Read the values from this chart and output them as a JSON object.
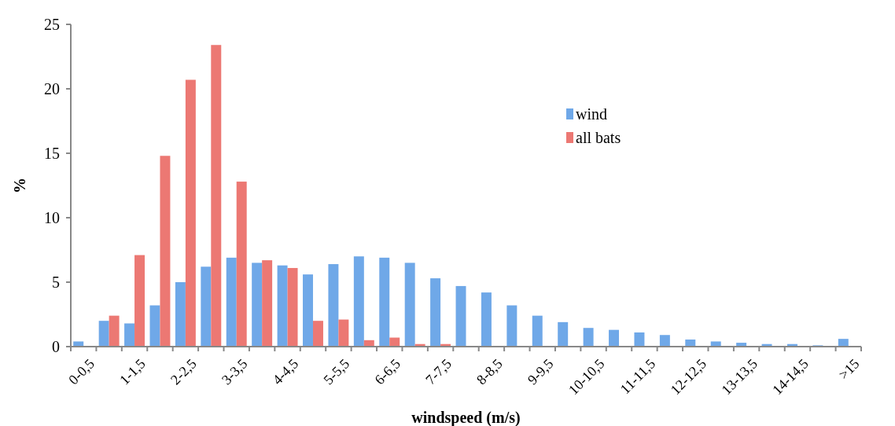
{
  "chart_data": {
    "type": "bar",
    "xlabel": "windspeed (m/s)",
    "ylabel": "%",
    "categories": [
      "0-0,5",
      null,
      "1-1,5",
      null,
      "2-2,5",
      null,
      "3-3,5",
      null,
      "4-4,5",
      null,
      "5-5,5",
      null,
      "6-6,5",
      null,
      "7-7,5",
      null,
      "8-8,5",
      null,
      "9-9,5",
      null,
      "10-10,5",
      null,
      "11-11,5",
      null,
      "12-12,5",
      null,
      "13-13,5",
      null,
      "14-14,5",
      null,
      ">15"
    ],
    "series": [
      {
        "name": "wind",
        "color": "#6fa8e8",
        "values": [
          0.4,
          2.0,
          1.8,
          3.2,
          5.0,
          6.2,
          6.9,
          6.5,
          6.3,
          5.6,
          6.4,
          7.0,
          6.9,
          6.5,
          5.3,
          4.7,
          4.2,
          3.2,
          2.4,
          1.9,
          1.45,
          1.3,
          1.1,
          0.9,
          0.55,
          0.4,
          0.3,
          0.2,
          0.2,
          0.1,
          0.6
        ]
      },
      {
        "name": "all bats",
        "color": "#ec7873",
        "values": [
          0,
          2.4,
          7.1,
          14.8,
          20.7,
          23.4,
          12.8,
          6.7,
          6.1,
          2.0,
          2.1,
          0.5,
          0.7,
          0.2,
          0.2,
          0,
          0,
          0,
          0,
          0,
          0,
          0,
          0,
          0,
          0,
          0,
          0,
          0,
          0,
          0,
          0
        ]
      }
    ],
    "ylim": [
      0,
      25
    ],
    "yticks": [
      0,
      5,
      10,
      15,
      20,
      25
    ],
    "grid": false,
    "legend": "top right"
  }
}
